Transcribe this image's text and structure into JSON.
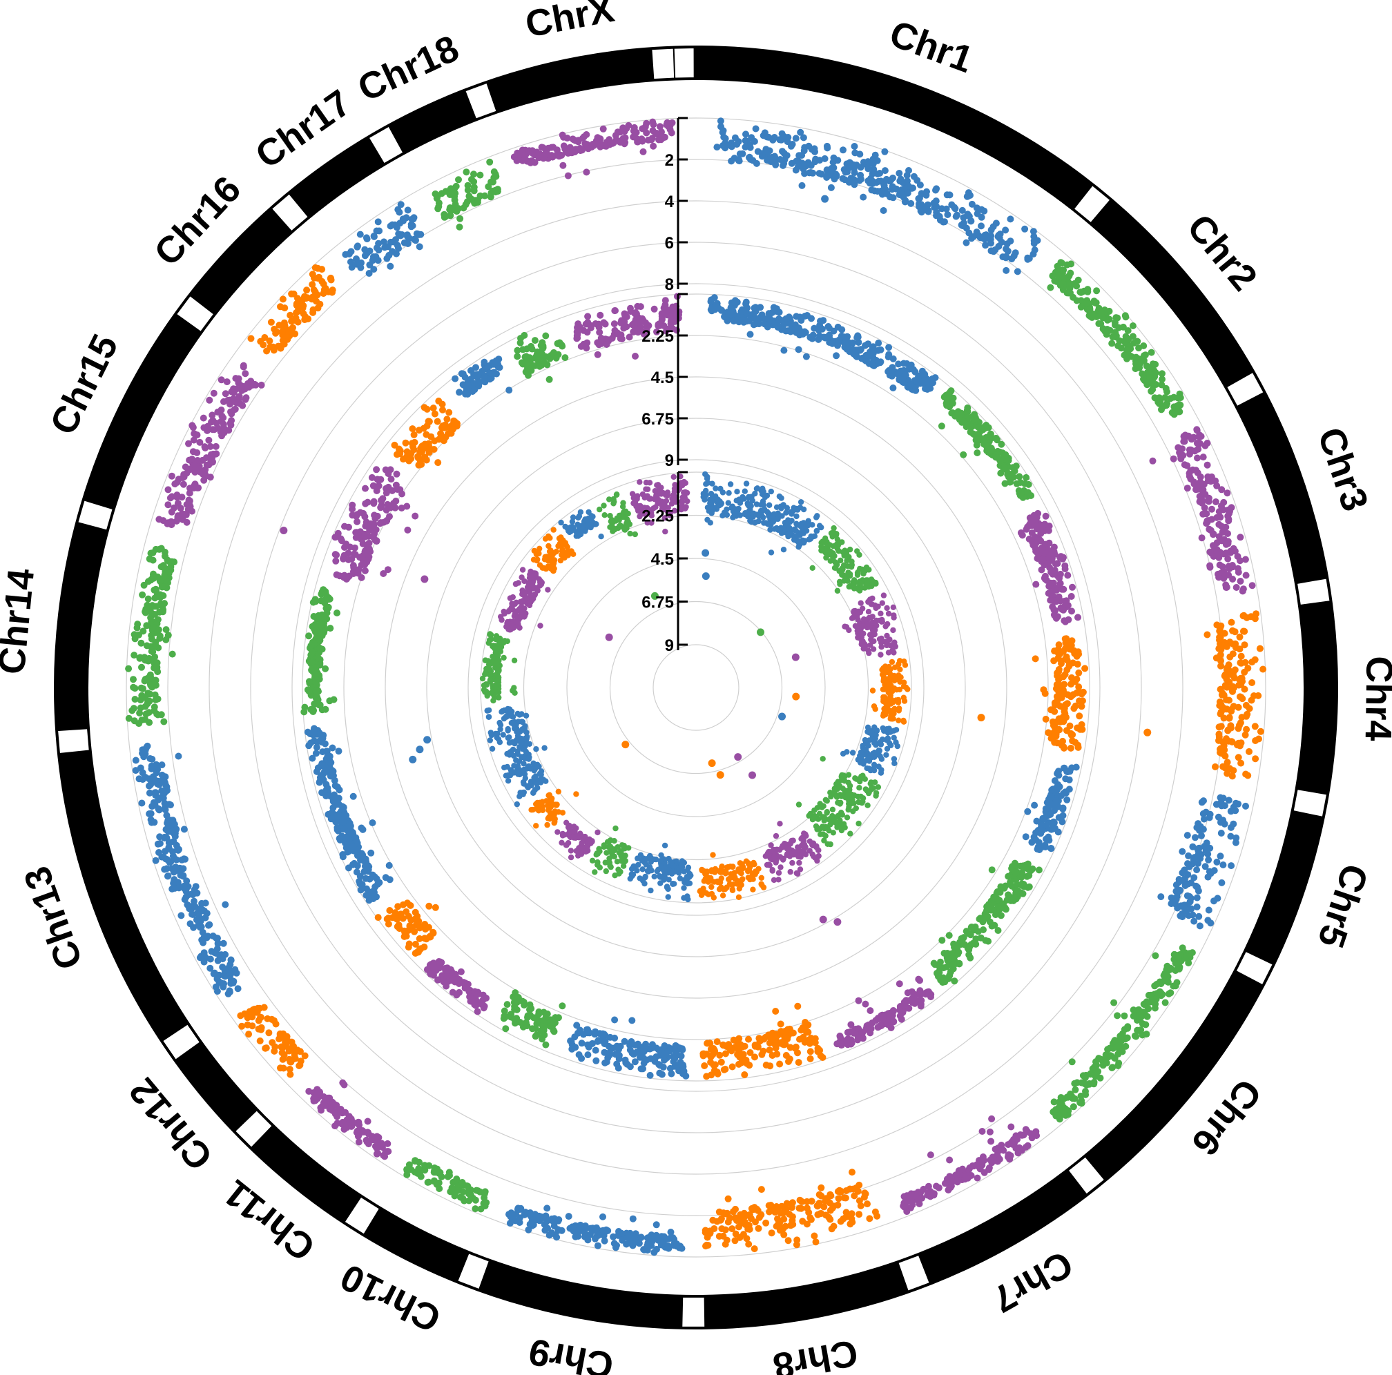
{
  "chart_data": {
    "type": "scatter",
    "subtype": "circular-manhattan",
    "title": "",
    "colors": [
      "#3a7ebf",
      "#4dae4a",
      "#984ea3",
      "#ff7f00"
    ],
    "chromosomes": [
      {
        "name": "Chr1",
        "color": "#3a7ebf"
      },
      {
        "name": "Chr2",
        "color": "#4dae4a"
      },
      {
        "name": "Chr3",
        "color": "#984ea3"
      },
      {
        "name": "Chr4",
        "color": "#ff7f00"
      },
      {
        "name": "Chr5",
        "color": "#3a7ebf"
      },
      {
        "name": "Chr6",
        "color": "#4dae4a"
      },
      {
        "name": "Chr7",
        "color": "#984ea3"
      },
      {
        "name": "Chr8",
        "color": "#ff7f00"
      },
      {
        "name": "Chr9",
        "color": "#3a7ebf"
      },
      {
        "name": "Chr10",
        "color": "#4dae4a"
      },
      {
        "name": "Chr11",
        "color": "#984ea3"
      },
      {
        "name": "Chr12",
        "color": "#ff7f00"
      },
      {
        "name": "Chr13",
        "color": "#3a7ebf"
      },
      {
        "name": "Chr14",
        "color": "#4dae4a"
      },
      {
        "name": "Chr15",
        "color": "#984ea3"
      },
      {
        "name": "Chr16",
        "color": "#ff7f00"
      },
      {
        "name": "Chr17",
        "color": "#3a7ebf"
      },
      {
        "name": "Chr18",
        "color": "#4dae4a"
      },
      {
        "name": "ChrX",
        "color": "#984ea3"
      }
    ],
    "chromosome_sizes_mb": [
      274,
      151,
      132,
      130,
      104,
      170,
      121,
      139,
      139,
      69,
      79,
      61,
      208,
      141,
      140,
      79,
      64,
      55,
      126
    ],
    "tracks": [
      {
        "ticks": [
          "2",
          "4",
          "6",
          "8"
        ],
        "tick_values": [
          2,
          4,
          6,
          8
        ],
        "ylim": [
          0,
          8
        ]
      },
      {
        "ticks": [
          "2.25",
          "4.5",
          "6.75",
          "9"
        ],
        "tick_values": [
          2.25,
          4.5,
          6.75,
          9
        ],
        "ylim": [
          0,
          9
        ]
      },
      {
        "ticks": [
          "2.25",
          "4.5",
          "6.75",
          "9"
        ],
        "tick_values": [
          2.25,
          4.5,
          6.75,
          9
        ],
        "ylim": [
          0,
          9
        ]
      }
    ],
    "outliers": [
      {
        "track": 0,
        "chr": 0,
        "pos": 0.35,
        "value": 3.1
      },
      {
        "track": 0,
        "chr": 3,
        "pos": 0.78,
        "value": 5.6
      },
      {
        "track": 0,
        "chr": 14,
        "pos": 0.2,
        "value": 6.2
      },
      {
        "track": 1,
        "chr": 3,
        "pos": 0.8,
        "value": 5.8
      },
      {
        "track": 1,
        "chr": 6,
        "pos": 0.4,
        "value": 6.5
      },
      {
        "track": 1,
        "chr": 6,
        "pos": 0.55,
        "value": 7.0
      },
      {
        "track": 1,
        "chr": 12,
        "pos": 0.7,
        "value": 5.5
      },
      {
        "track": 1,
        "chr": 12,
        "pos": 0.76,
        "value": 6.0
      },
      {
        "track": 1,
        "chr": 12,
        "pos": 0.82,
        "value": 6.5
      },
      {
        "track": 1,
        "chr": 14,
        "pos": 0.25,
        "value": 5.5
      },
      {
        "track": 2,
        "chr": 0,
        "pos": 0.05,
        "value": 4.2
      },
      {
        "track": 2,
        "chr": 0,
        "pos": 0.08,
        "value": 5.4
      },
      {
        "track": 2,
        "chr": 1,
        "pos": 0.45,
        "value": 6.8
      },
      {
        "track": 2,
        "chr": 2,
        "pos": 0.6,
        "value": 5.8
      },
      {
        "track": 2,
        "chr": 3,
        "pos": 0.75,
        "value": 6.0
      },
      {
        "track": 2,
        "chr": 4,
        "pos": 0.5,
        "value": 6.5
      },
      {
        "track": 2,
        "chr": 6,
        "pos": 0.3,
        "value": 5.8
      },
      {
        "track": 2,
        "chr": 6,
        "pos": 0.4,
        "value": 7.0
      },
      {
        "track": 2,
        "chr": 7,
        "pos": 0.2,
        "value": 6.5
      },
      {
        "track": 2,
        "chr": 7,
        "pos": 0.4,
        "value": 7.2
      },
      {
        "track": 2,
        "chr": 11,
        "pos": 0.6,
        "value": 6.5
      },
      {
        "track": 2,
        "chr": 14,
        "pos": 0.7,
        "value": 6.0
      },
      {
        "track": 2,
        "chr": 17,
        "pos": 0.6,
        "value": 6.0
      }
    ]
  }
}
